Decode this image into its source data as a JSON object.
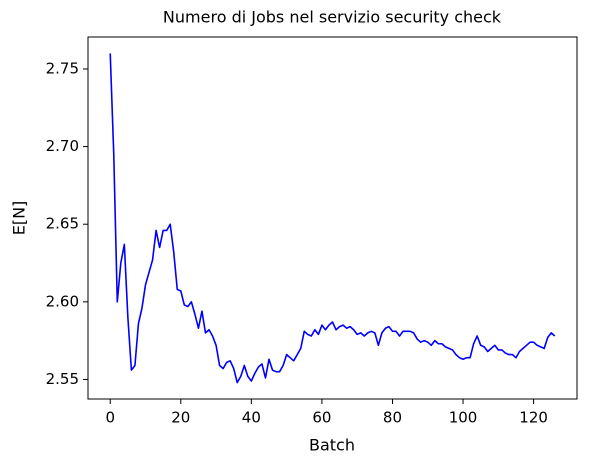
{
  "chart_data": {
    "type": "line",
    "title": "Numero di Jobs nel servizio security check",
    "xlabel": "Batch",
    "ylabel": "E[N]",
    "x": [
      0,
      1,
      2,
      3,
      4,
      5,
      6,
      7,
      8,
      9,
      10,
      11,
      12,
      13,
      14,
      15,
      16,
      17,
      18,
      19,
      20,
      21,
      22,
      23,
      24,
      25,
      26,
      27,
      28,
      29,
      30,
      31,
      32,
      33,
      34,
      35,
      36,
      37,
      38,
      39,
      40,
      41,
      42,
      43,
      44,
      45,
      46,
      47,
      48,
      49,
      50,
      51,
      52,
      53,
      54,
      55,
      56,
      57,
      58,
      59,
      60,
      61,
      62,
      63,
      64,
      65,
      66,
      67,
      68,
      69,
      70,
      71,
      72,
      73,
      74,
      75,
      76,
      77,
      78,
      79,
      80,
      81,
      82,
      83,
      84,
      85,
      86,
      87,
      88,
      89,
      90,
      91,
      92,
      93,
      94,
      95,
      96,
      97,
      98,
      99,
      100,
      101,
      102,
      103,
      104,
      105,
      106,
      107,
      108,
      109,
      110,
      111,
      112,
      113,
      114,
      115,
      116,
      117,
      118,
      119,
      120,
      121,
      122,
      123,
      124,
      125,
      126
    ],
    "series": [
      {
        "name": "E[N]",
        "color": "#0000ff",
        "values": [
          2.76,
          2.695,
          2.6,
          2.625,
          2.637,
          2.59,
          2.556,
          2.559,
          2.586,
          2.596,
          2.611,
          2.619,
          2.627,
          2.646,
          2.635,
          2.646,
          2.646,
          2.65,
          2.632,
          2.608,
          2.607,
          2.598,
          2.597,
          2.6,
          2.592,
          2.583,
          2.594,
          2.58,
          2.582,
          2.578,
          2.572,
          2.559,
          2.557,
          2.561,
          2.562,
          2.557,
          2.548,
          2.552,
          2.559,
          2.552,
          2.549,
          2.554,
          2.558,
          2.56,
          2.551,
          2.563,
          2.556,
          2.555,
          2.555,
          2.559,
          2.566,
          2.564,
          2.562,
          2.566,
          2.57,
          2.581,
          2.579,
          2.578,
          2.582,
          2.579,
          2.585,
          2.582,
          2.585,
          2.587,
          2.582,
          2.584,
          2.585,
          2.583,
          2.584,
          2.582,
          2.579,
          2.58,
          2.578,
          2.58,
          2.581,
          2.58,
          2.572,
          2.58,
          2.583,
          2.584,
          2.581,
          2.581,
          2.578,
          2.581,
          2.581,
          2.581,
          2.58,
          2.576,
          2.574,
          2.575,
          2.574,
          2.572,
          2.575,
          2.573,
          2.573,
          2.571,
          2.57,
          2.569,
          2.566,
          2.564,
          2.563,
          2.564,
          2.564,
          2.573,
          2.578,
          2.572,
          2.571,
          2.568,
          2.57,
          2.572,
          2.569,
          2.569,
          2.567,
          2.566,
          2.566,
          2.564,
          2.568,
          2.57,
          2.572,
          2.574,
          2.574,
          2.572,
          2.571,
          2.57,
          2.577,
          2.58,
          2.578
        ]
      }
    ],
    "xlim": [
      -6.3,
      132.3
    ],
    "xticks": [
      0,
      20,
      40,
      60,
      80,
      100,
      120
    ],
    "ylim": [
      2.5374,
      2.7706
    ],
    "yticks": [
      2.55,
      {
        "value": 2.6,
        "label": "2.60"
      },
      2.65,
      {
        "value": 2.7,
        "label": "2.70"
      },
      2.75
    ],
    "grid": false
  }
}
